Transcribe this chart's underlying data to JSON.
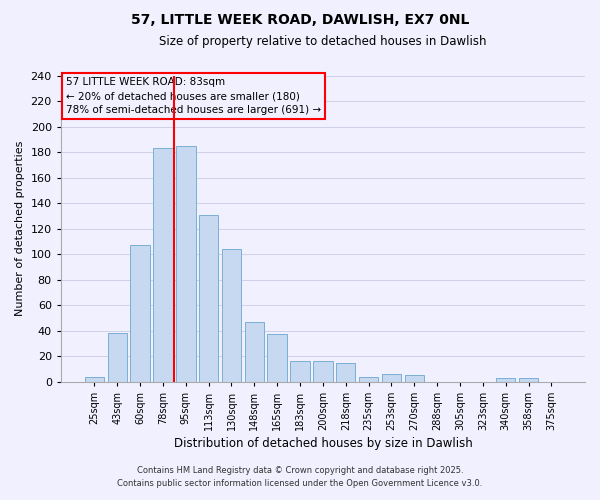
{
  "title": "57, LITTLE WEEK ROAD, DAWLISH, EX7 0NL",
  "subtitle": "Size of property relative to detached houses in Dawlish",
  "xlabel": "Distribution of detached houses by size in Dawlish",
  "ylabel": "Number of detached properties",
  "categories": [
    "25sqm",
    "43sqm",
    "60sqm",
    "78sqm",
    "95sqm",
    "113sqm",
    "130sqm",
    "148sqm",
    "165sqm",
    "183sqm",
    "200sqm",
    "218sqm",
    "235sqm",
    "253sqm",
    "270sqm",
    "288sqm",
    "305sqm",
    "323sqm",
    "340sqm",
    "358sqm",
    "375sqm"
  ],
  "values": [
    4,
    38,
    107,
    183,
    185,
    131,
    104,
    47,
    37,
    16,
    16,
    15,
    4,
    6,
    5,
    0,
    0,
    0,
    3,
    3,
    0
  ],
  "bar_color": "#c6d9f1",
  "bar_edge_color": "#7bafd4",
  "redline_index": 3.5,
  "ylim": [
    0,
    240
  ],
  "yticks": [
    0,
    20,
    40,
    60,
    80,
    100,
    120,
    140,
    160,
    180,
    200,
    220,
    240
  ],
  "annotation_title": "57 LITTLE WEEK ROAD: 83sqm",
  "annotation_line1": "← 20% of detached houses are smaller (180)",
  "annotation_line2": "78% of semi-detached houses are larger (691) →",
  "footer1": "Contains HM Land Registry data © Crown copyright and database right 2025.",
  "footer2": "Contains public sector information licensed under the Open Government Licence v3.0.",
  "background_color": "#f0f0ff",
  "grid_color": "#d0d0e8"
}
